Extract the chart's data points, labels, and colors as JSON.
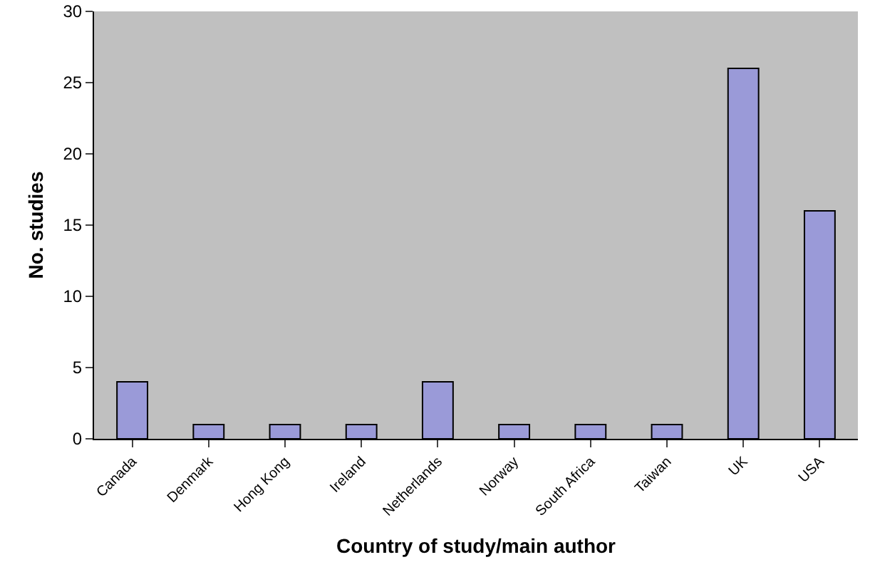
{
  "chart_data": {
    "type": "bar",
    "xlabel": "Country of study/main author",
    "ylabel": "No. studies",
    "categories": [
      "Canada",
      "Denmark",
      "Hong Kong",
      "Ireland",
      "Netherlands",
      "Norway",
      "South Africa",
      "Taiwan",
      "UK",
      "USA"
    ],
    "values": [
      4,
      1,
      1,
      1,
      4,
      1,
      1,
      1,
      26,
      16
    ],
    "color": "#9a9ad8",
    "ylim": [
      0,
      30
    ],
    "yticks": [
      0,
      5,
      10,
      15,
      20,
      25,
      30
    ],
    "grid": false
  }
}
